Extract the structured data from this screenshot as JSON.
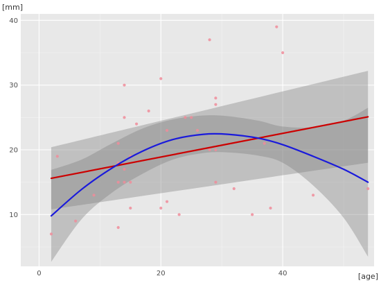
{
  "chart_data": {
    "type": "scatter",
    "title": "",
    "xlabel": "[age]",
    "ylabel": "[mm]",
    "xlim": [
      -3,
      55
    ],
    "ylim": [
      2,
      41
    ],
    "xticks": [
      0,
      20,
      40
    ],
    "yticks": [
      10,
      20,
      30,
      40
    ],
    "grid": true,
    "legend": "none",
    "colors": {
      "panel": "#e8e8e8",
      "grid_major": "#ffffff",
      "grid_minor": "#f3f3f3",
      "points": "#f08c9a",
      "linear_fit": "#cc0000",
      "poly_fit": "#1a1adb",
      "band": "#7f7f7f"
    },
    "points": [
      {
        "x": 2,
        "y": 7
      },
      {
        "x": 3,
        "y": 19
      },
      {
        "x": 6,
        "y": 9
      },
      {
        "x": 9,
        "y": 13
      },
      {
        "x": 13,
        "y": 8
      },
      {
        "x": 13,
        "y": 15
      },
      {
        "x": 13,
        "y": 18
      },
      {
        "x": 13,
        "y": 21
      },
      {
        "x": 14,
        "y": 15
      },
      {
        "x": 14,
        "y": 17
      },
      {
        "x": 14,
        "y": 25
      },
      {
        "x": 14,
        "y": 30
      },
      {
        "x": 15,
        "y": 11
      },
      {
        "x": 15,
        "y": 15
      },
      {
        "x": 15,
        "y": 19
      },
      {
        "x": 16,
        "y": 24
      },
      {
        "x": 18,
        "y": 26
      },
      {
        "x": 20,
        "y": 11
      },
      {
        "x": 20,
        "y": 31
      },
      {
        "x": 21,
        "y": 12
      },
      {
        "x": 21,
        "y": 23
      },
      {
        "x": 23,
        "y": 10
      },
      {
        "x": 24,
        "y": 25
      },
      {
        "x": 25,
        "y": 25
      },
      {
        "x": 26,
        "y": 23
      },
      {
        "x": 28,
        "y": 20
      },
      {
        "x": 28,
        "y": 37
      },
      {
        "x": 29,
        "y": 15
      },
      {
        "x": 29,
        "y": 20
      },
      {
        "x": 29,
        "y": 27
      },
      {
        "x": 29,
        "y": 28
      },
      {
        "x": 32,
        "y": 14
      },
      {
        "x": 35,
        "y": 10
      },
      {
        "x": 37,
        "y": 21
      },
      {
        "x": 38,
        "y": 11
      },
      {
        "x": 39,
        "y": 39
      },
      {
        "x": 40,
        "y": 35
      },
      {
        "x": 45,
        "y": 13
      },
      {
        "x": 54,
        "y": 14
      }
    ],
    "series": [
      {
        "fit": "linear",
        "x": [
          2,
          54
        ],
        "y": [
          15.6,
          25.1
        ],
        "band_lower": [
          10.8,
          18
        ],
        "band_upper": [
          20.4,
          32.2
        ]
      },
      {
        "fit": "quadratic",
        "x": [
          2,
          7,
          12,
          17,
          22,
          27,
          31,
          36,
          40,
          45,
          50,
          54
        ],
        "y": [
          9.8,
          13.9,
          17.2,
          19.8,
          21.6,
          22.4,
          22.4,
          21.8,
          20.8,
          19,
          17,
          15
        ],
        "band_lower": [
          2.7,
          9.3,
          13.4,
          16.3,
          18.5,
          19.5,
          19.6,
          19.1,
          18,
          14.5,
          9.5,
          3.5
        ],
        "band_upper": [
          16.9,
          18.5,
          21,
          23.3,
          24.7,
          25.3,
          25.2,
          24.5,
          23.6,
          23.5,
          24.5,
          26.5
        ]
      }
    ]
  }
}
